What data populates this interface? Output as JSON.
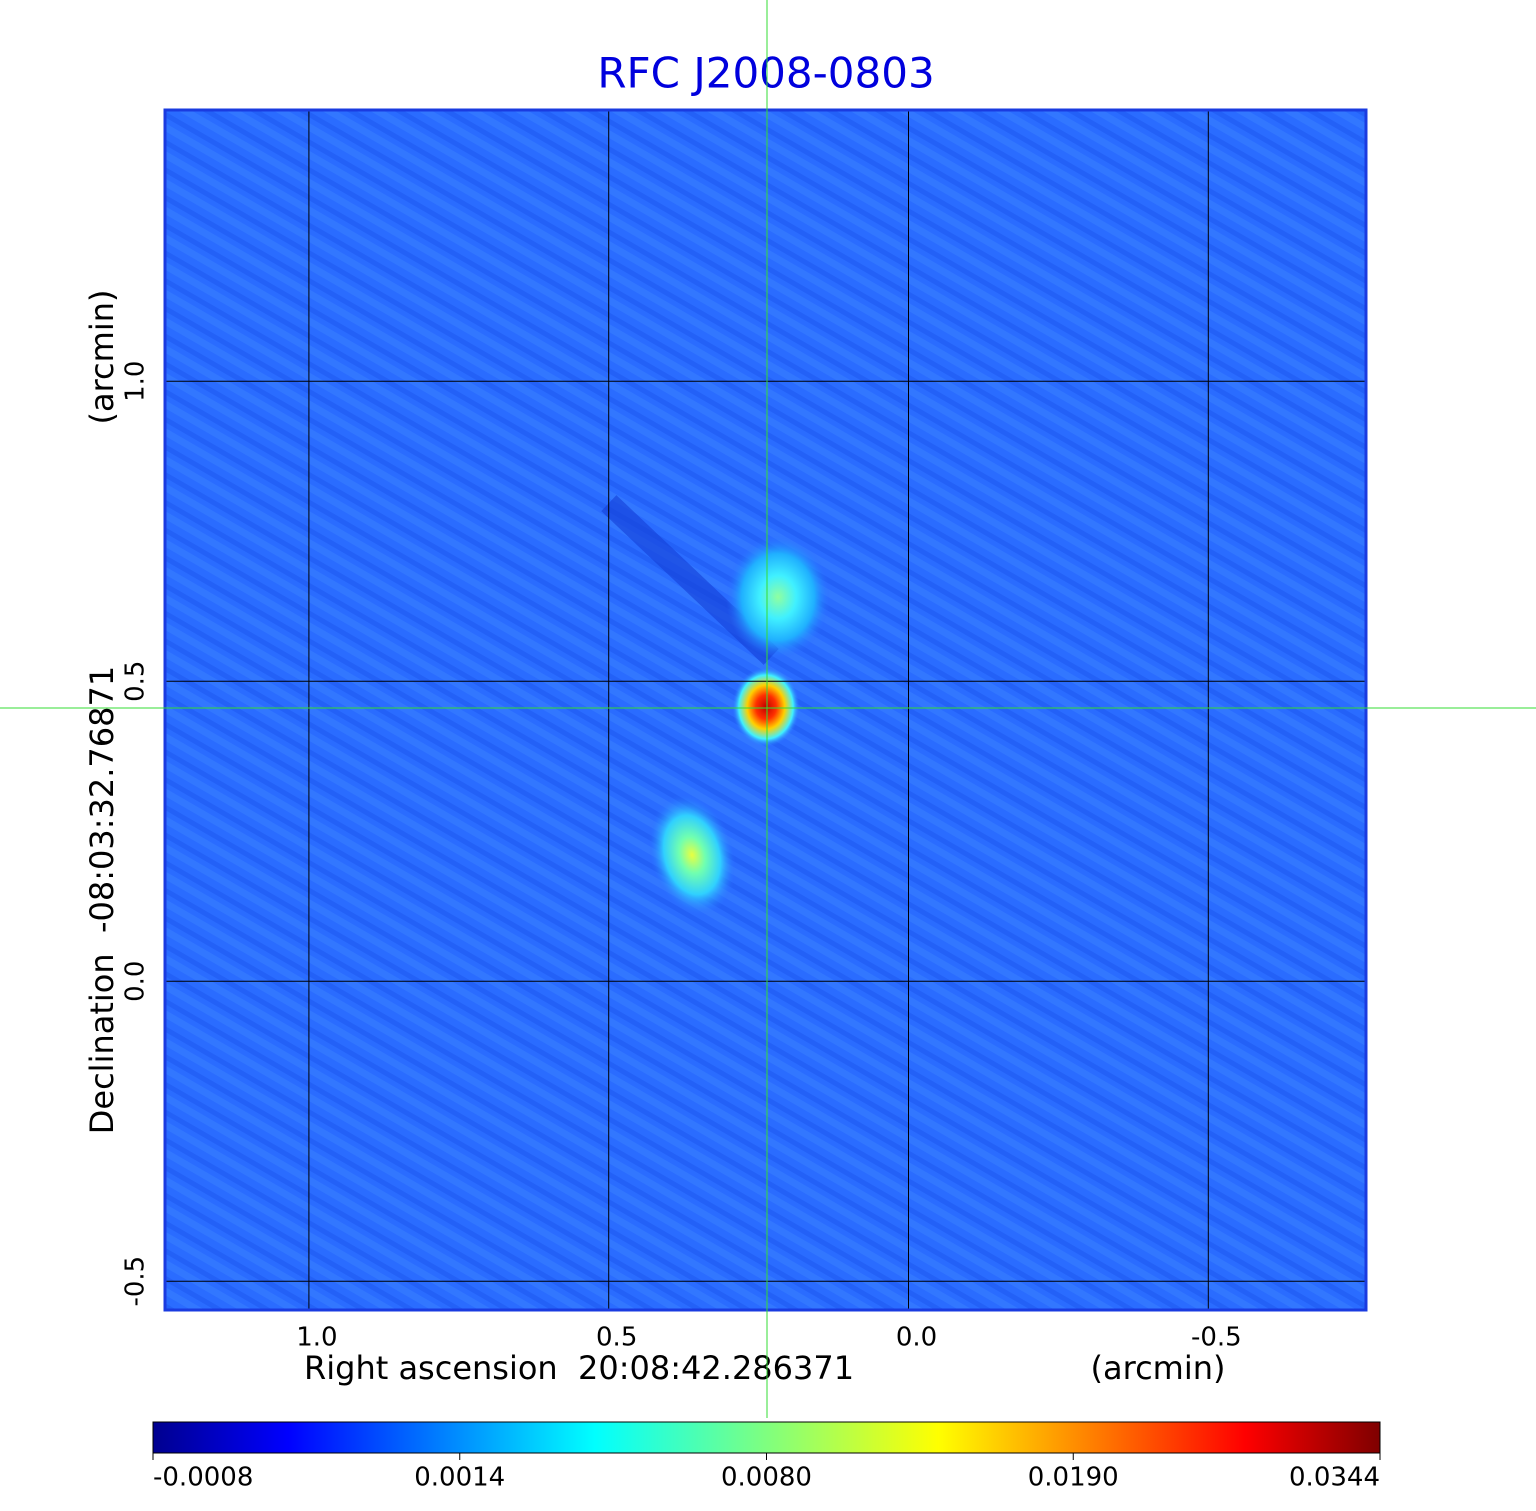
{
  "chart_data": {
    "type": "image",
    "title": "RFC J2008-0803",
    "xlabel": "Right ascension  20:08:42.286371",
    "xunit": "(arcmin)",
    "ylabel": "Declination  -08:03:32.76871",
    "yunit": "(arcmin)",
    "xlim": [
      1.24,
      -0.763
    ],
    "ylim": [
      -0.548,
      1.452
    ],
    "xticks": [
      {
        "value": 1,
        "label": "1.0"
      },
      0.5,
      {
        "value": 0,
        "label": "0.0"
      },
      -0.5
    ],
    "yticks": [
      -0.5,
      {
        "value": 0,
        "label": "0.0"
      },
      0.5,
      {
        "value": 1,
        "label": "1.0"
      }
    ],
    "grid": true,
    "colormap": "jet",
    "colorbar": {
      "lim": [
        -0.0008,
        0.0344
      ],
      "ticks": [
        -0.0008,
        0.0014,
        {
          "value": 0.008,
          "label": "0.0080"
        },
        {
          "value": 0.019,
          "label": "0.0190"
        },
        0.0344
      ]
    }
  }
}
